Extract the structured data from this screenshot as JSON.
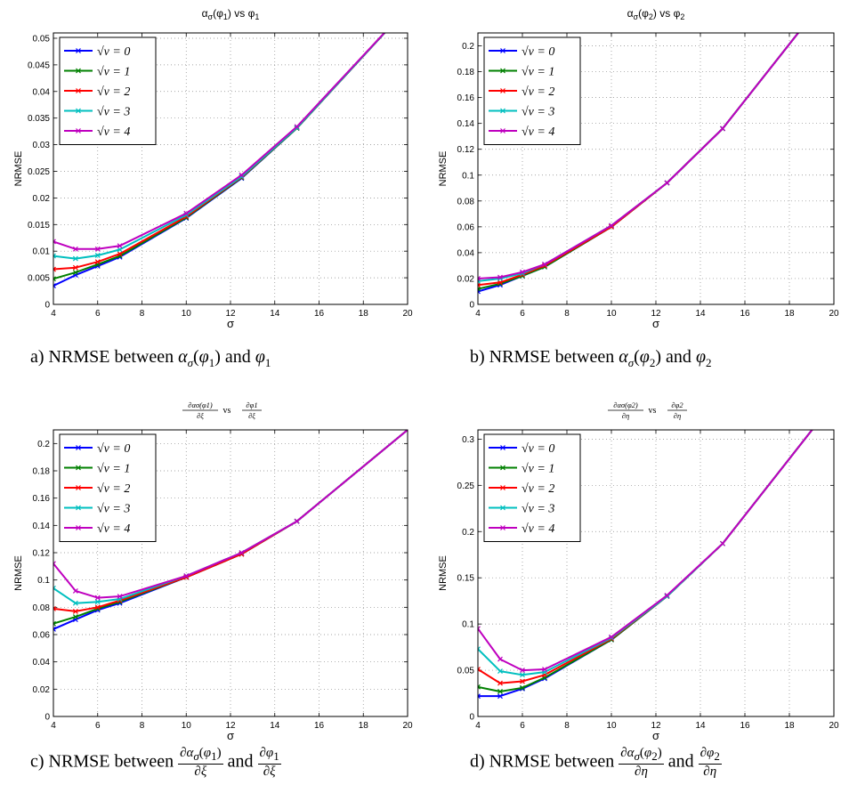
{
  "captions": [
    "a) NRMSE between ασ(φ1) and φ1",
    "b) NRMSE between ασ(φ2) and φ2",
    "c) NRMSE between ∂ασ(φ1)/∂ξ and ∂φ1/∂ξ",
    "d) NRMSE between ∂ασ(φ2)/∂η and ∂φ2/∂η"
  ],
  "caption_parts": {
    "prefix": [
      "a) NRMSE between",
      "b) NRMSE between",
      "c) NRMSE between",
      "d) NRMSE between"
    ],
    "and": "and"
  },
  "colors": {
    "v0": "#0000ff",
    "v1": "#008000",
    "v2": "#ff0000",
    "v3": "#00bfbf",
    "v4": "#bf00bf"
  },
  "chart_data": [
    {
      "type": "line",
      "title": "ασ(φ1) vs φ1",
      "xlabel": "σ",
      "ylabel": "NRMSE",
      "xlim": [
        4,
        20
      ],
      "ylim": [
        0,
        0.051
      ],
      "xticks": [
        "4",
        "6",
        "8",
        "10",
        "12",
        "14",
        "16",
        "18",
        "20"
      ],
      "yticks": [
        "0",
        "0.005",
        "0.01",
        "0.015",
        "0.02",
        "0.025",
        "0.03",
        "0.035",
        "0.04",
        "0.045",
        "0.05"
      ],
      "grid": true,
      "legend_position": "top-left",
      "x": [
        4,
        5,
        6,
        7,
        10,
        12.5,
        15,
        20
      ],
      "series": [
        {
          "name": "√v = 0",
          "values": [
            0.0035,
            0.0055,
            0.0072,
            0.0089,
            0.0162,
            0.0237,
            0.0331,
            0.0557
          ]
        },
        {
          "name": "√v = 1",
          "values": [
            0.0048,
            0.006,
            0.0075,
            0.0091,
            0.0163,
            0.0238,
            0.0331,
            0.0557
          ]
        },
        {
          "name": "√v = 2",
          "values": [
            0.0066,
            0.0069,
            0.008,
            0.0095,
            0.0165,
            0.0239,
            0.0332,
            0.0557
          ]
        },
        {
          "name": "√v = 3",
          "values": [
            0.0091,
            0.0086,
            0.0092,
            0.0103,
            0.0168,
            0.024,
            0.0332,
            0.0557
          ]
        },
        {
          "name": "√v = 4",
          "values": [
            0.0118,
            0.0104,
            0.0104,
            0.011,
            0.0171,
            0.0243,
            0.0334,
            0.0557
          ]
        }
      ]
    },
    {
      "type": "line",
      "title": "ασ(φ2) vs φ2",
      "xlabel": "σ",
      "ylabel": "NRMSE",
      "xlim": [
        4,
        20
      ],
      "ylim": [
        0,
        0.21
      ],
      "xticks": [
        "4",
        "6",
        "8",
        "10",
        "12",
        "14",
        "16",
        "18",
        "20"
      ],
      "yticks": [
        "0",
        "0.02",
        "0.04",
        "0.06",
        "0.08",
        "0.1",
        "0.12",
        "0.14",
        "0.16",
        "0.18",
        "0.2"
      ],
      "grid": true,
      "legend_position": "top-left",
      "x": [
        4,
        5,
        6,
        7,
        10,
        12.5,
        15,
        20
      ],
      "series": [
        {
          "name": "√v = 0",
          "values": [
            0.01,
            0.015,
            0.022,
            0.029,
            0.06,
            0.094,
            0.136,
            0.245
          ]
        },
        {
          "name": "√v = 1",
          "values": [
            0.012,
            0.016,
            0.022,
            0.029,
            0.06,
            0.094,
            0.136,
            0.245
          ]
        },
        {
          "name": "√v = 2",
          "values": [
            0.015,
            0.017,
            0.023,
            0.03,
            0.06,
            0.094,
            0.136,
            0.245
          ]
        },
        {
          "name": "√v = 3",
          "values": [
            0.018,
            0.02,
            0.024,
            0.031,
            0.061,
            0.094,
            0.136,
            0.245
          ]
        },
        {
          "name": "√v = 4",
          "values": [
            0.02,
            0.021,
            0.025,
            0.031,
            0.061,
            0.094,
            0.136,
            0.245
          ]
        }
      ]
    },
    {
      "type": "line",
      "title_parts": {
        "num_left": "∂ασ(φ1)",
        "den_left": "∂ξ",
        "mid": "vs",
        "num_right": "∂φ1",
        "den_right": "∂ξ"
      },
      "xlabel": "σ",
      "ylabel": "NRMSE",
      "xlim": [
        4,
        20
      ],
      "ylim": [
        0,
        0.21
      ],
      "xticks": [
        "4",
        "6",
        "8",
        "10",
        "12",
        "14",
        "16",
        "18",
        "20"
      ],
      "yticks": [
        "0",
        "0.02",
        "0.04",
        "0.06",
        "0.08",
        "0.1",
        "0.12",
        "0.14",
        "0.16",
        "0.18",
        "0.2"
      ],
      "grid": true,
      "legend_position": "top-left",
      "x": [
        4,
        5,
        6,
        7,
        10,
        12.5,
        15,
        20
      ],
      "series": [
        {
          "name": "√v = 0",
          "values": [
            0.064,
            0.071,
            0.078,
            0.083,
            0.102,
            0.119,
            0.143,
            0.21
          ]
        },
        {
          "name": "√v = 1",
          "values": [
            0.068,
            0.073,
            0.079,
            0.084,
            0.102,
            0.119,
            0.143,
            0.21
          ]
        },
        {
          "name": "√v = 2",
          "values": [
            0.079,
            0.077,
            0.08,
            0.085,
            0.102,
            0.119,
            0.143,
            0.21
          ]
        },
        {
          "name": "√v = 3",
          "values": [
            0.094,
            0.083,
            0.084,
            0.086,
            0.103,
            0.12,
            0.143,
            0.21
          ]
        },
        {
          "name": "√v = 4",
          "values": [
            0.112,
            0.092,
            0.087,
            0.088,
            0.103,
            0.12,
            0.143,
            0.21
          ]
        }
      ]
    },
    {
      "type": "line",
      "title_parts": {
        "num_left": "∂ασ(φ2)",
        "den_left": "∂η",
        "mid": "vs",
        "num_right": "∂φ2",
        "den_right": "∂η"
      },
      "xlabel": "σ",
      "ylabel": "NRMSE",
      "xlim": [
        4,
        20
      ],
      "ylim": [
        0,
        0.31
      ],
      "xticks": [
        "4",
        "6",
        "8",
        "10",
        "12",
        "14",
        "16",
        "18",
        "20"
      ],
      "yticks": [
        "0",
        "0.05",
        "0.1",
        "0.15",
        "0.2",
        "0.25",
        "0.3"
      ],
      "grid": true,
      "legend_position": "top-left",
      "x": [
        4,
        5,
        6,
        7,
        10,
        12.5,
        15,
        20
      ],
      "series": [
        {
          "name": "√v = 0",
          "values": [
            0.022,
            0.022,
            0.03,
            0.041,
            0.083,
            0.13,
            0.187,
            0.34
          ]
        },
        {
          "name": "√v = 1",
          "values": [
            0.032,
            0.027,
            0.031,
            0.042,
            0.083,
            0.13,
            0.187,
            0.34
          ]
        },
        {
          "name": "√v = 2",
          "values": [
            0.051,
            0.036,
            0.038,
            0.045,
            0.084,
            0.13,
            0.187,
            0.34
          ]
        },
        {
          "name": "√v = 3",
          "values": [
            0.073,
            0.049,
            0.045,
            0.048,
            0.085,
            0.13,
            0.187,
            0.34
          ]
        },
        {
          "name": "√v = 4",
          "values": [
            0.095,
            0.062,
            0.05,
            0.051,
            0.086,
            0.131,
            0.187,
            0.34
          ]
        }
      ]
    }
  ]
}
